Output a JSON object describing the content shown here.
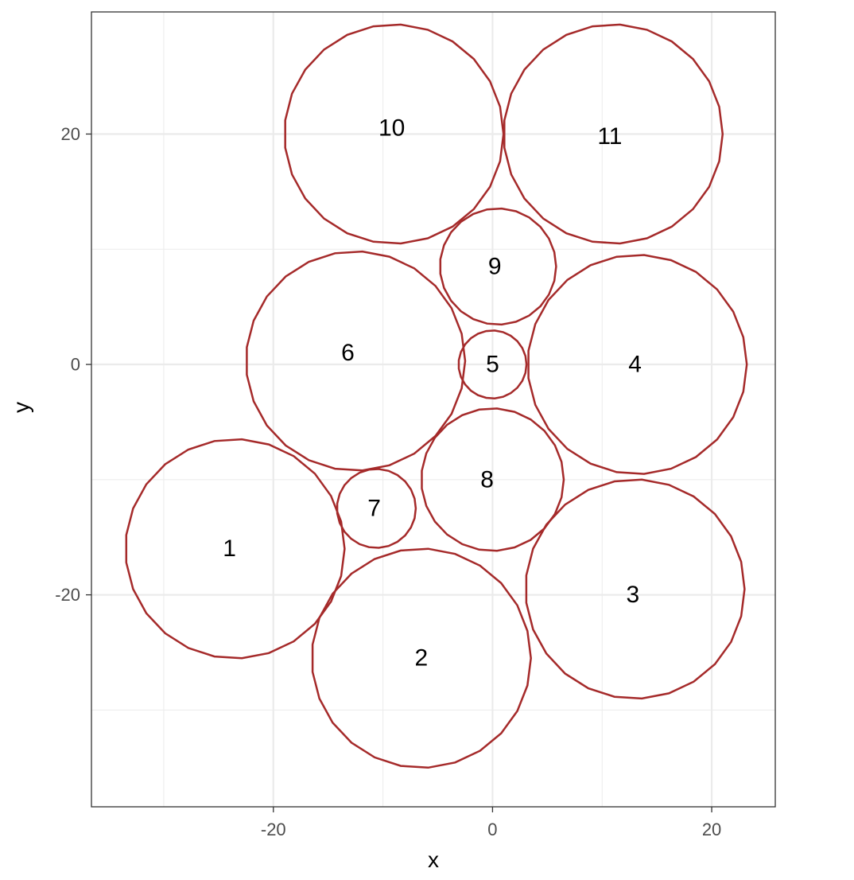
{
  "chart_data": {
    "type": "scatter",
    "title": "",
    "xlabel": "x",
    "ylabel": "y",
    "xlim": [
      -36.6,
      25.8
    ],
    "ylim": [
      -38.4,
      30.6
    ],
    "x_ticks": [
      -20,
      0,
      20
    ],
    "y_ticks": [
      -20,
      0,
      20
    ],
    "x_tick_labels": [
      "-20",
      "0",
      "20"
    ],
    "y_tick_labels": [
      "-20",
      "0",
      "20"
    ],
    "grid": true,
    "theme": "bw",
    "stroke_color": "#a52a2a",
    "circles": [
      {
        "id": "1",
        "label": "1",
        "x": -23.5,
        "y": -16.0,
        "r": 10.0,
        "label_x": -24.0,
        "label_y": -16.0
      },
      {
        "id": "2",
        "label": "2",
        "x": -6.5,
        "y": -25.5,
        "r": 10.0,
        "label_x": -6.5,
        "label_y": -25.5
      },
      {
        "id": "3",
        "label": "3",
        "x": 13.0,
        "y": -19.5,
        "r": 10.0,
        "label_x": 12.8,
        "label_y": -20.0
      },
      {
        "id": "4",
        "label": "4",
        "x": 13.2,
        "y": 0.0,
        "r": 10.0,
        "label_x": 13.0,
        "label_y": 0.0
      },
      {
        "id": "5",
        "label": "5",
        "x": 0.0,
        "y": 0.0,
        "r": 3.1,
        "label_x": 0.0,
        "label_y": 0.0
      },
      {
        "id": "6",
        "label": "6",
        "x": -12.5,
        "y": 0.3,
        "r": 10.0,
        "label_x": -13.2,
        "label_y": 1.0
      },
      {
        "id": "7",
        "label": "7",
        "x": -10.6,
        "y": -12.5,
        "r": 3.6,
        "label_x": -10.8,
        "label_y": -12.5
      },
      {
        "id": "8",
        "label": "8",
        "x": 0.0,
        "y": -10.0,
        "r": 6.5,
        "label_x": -0.5,
        "label_y": -10.0
      },
      {
        "id": "9",
        "label": "9",
        "x": 0.5,
        "y": 8.5,
        "r": 5.3,
        "label_x": 0.2,
        "label_y": 8.5
      },
      {
        "id": "10",
        "label": "10",
        "x": -9.0,
        "y": 20.0,
        "r": 10.0,
        "label_x": -9.2,
        "label_y": 20.5
      },
      {
        "id": "11",
        "label": "11",
        "x": 11.0,
        "y": 20.0,
        "r": 10.0,
        "label_x": 10.7,
        "label_y": 19.8
      }
    ]
  }
}
